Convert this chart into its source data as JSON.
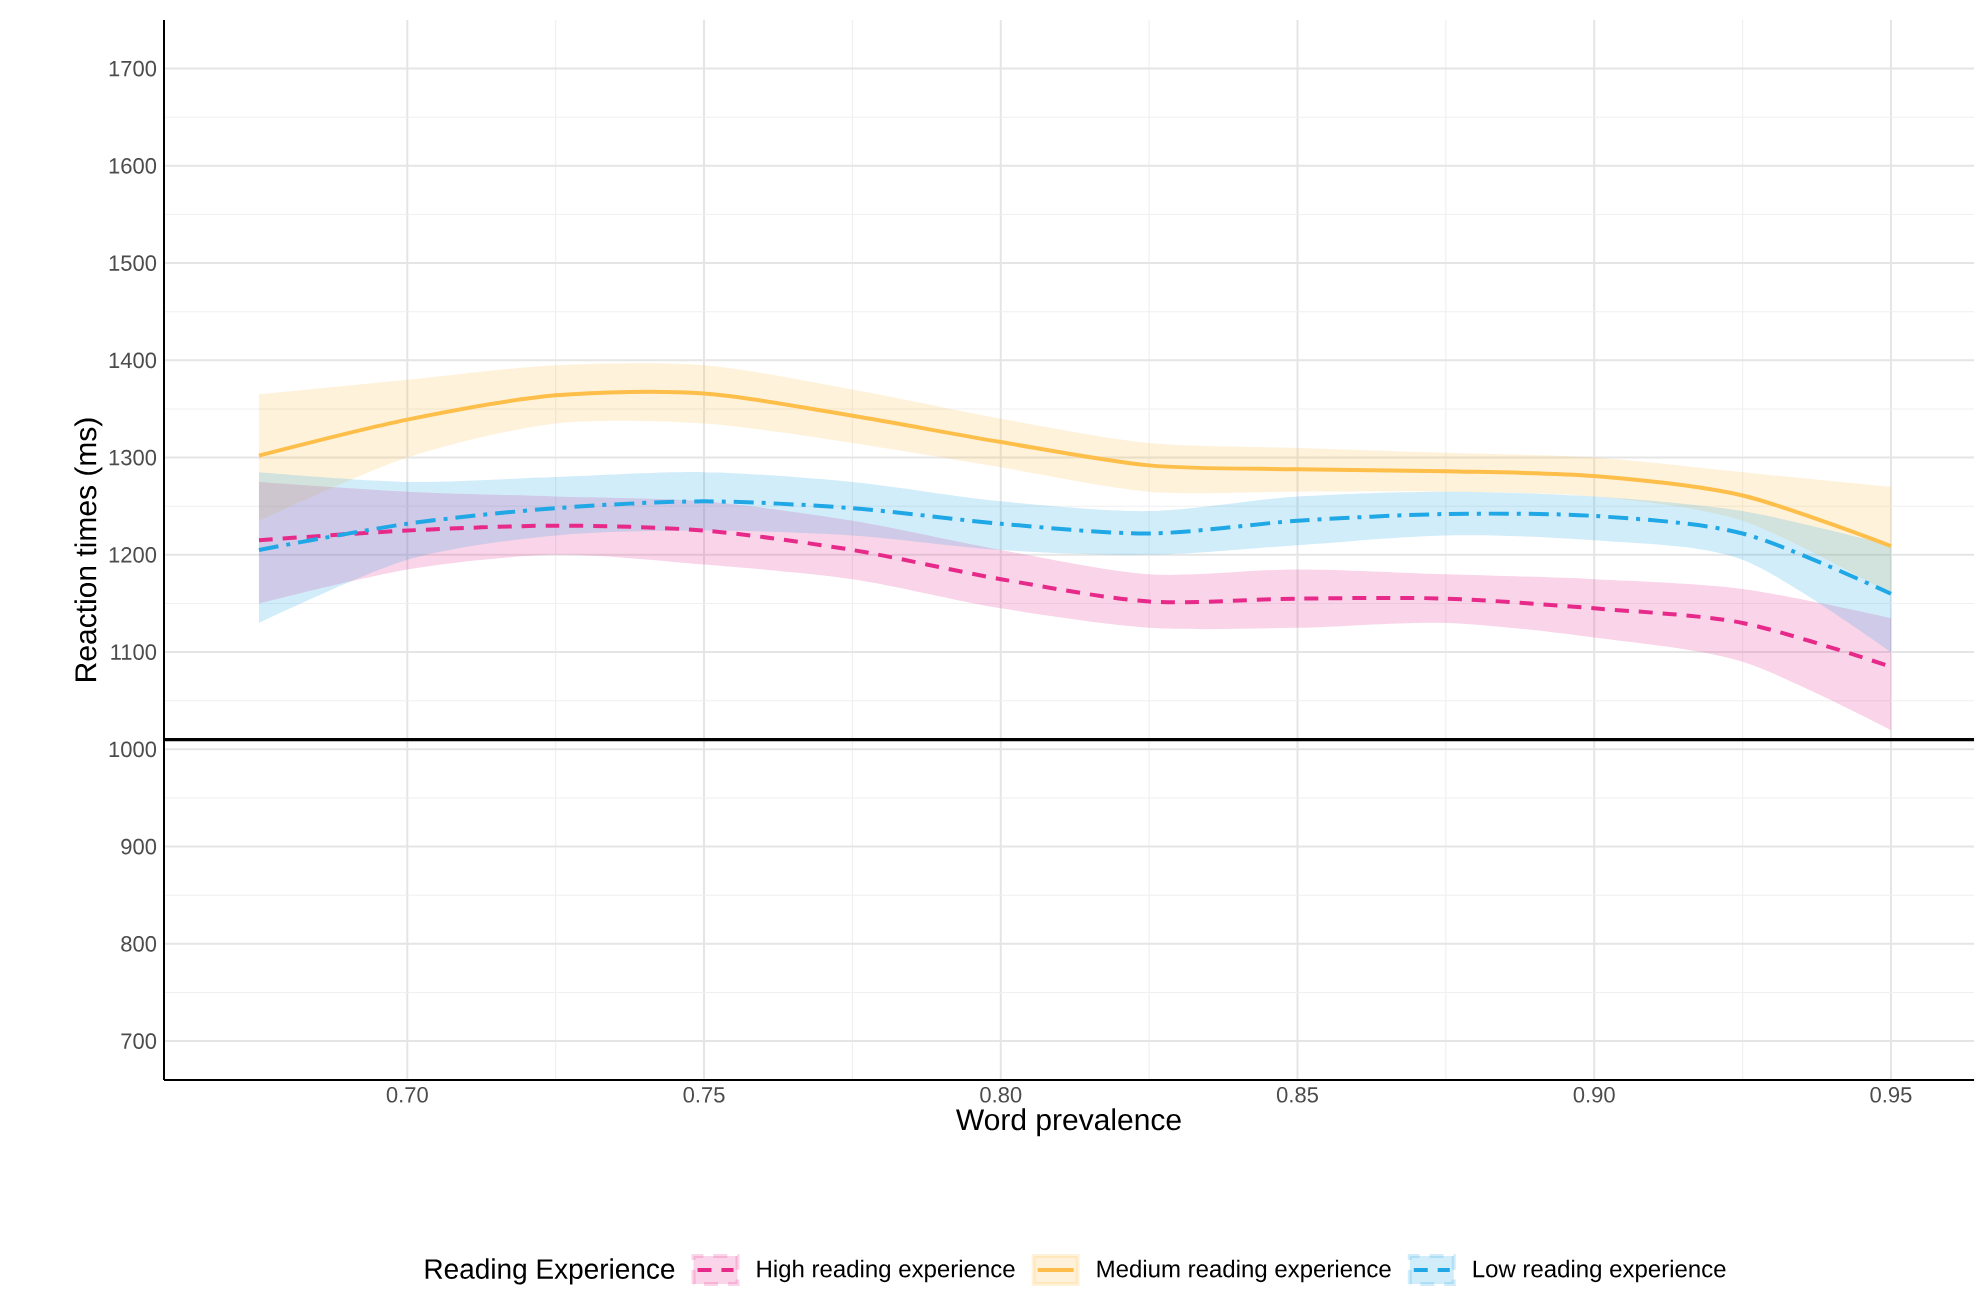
{
  "chart_data": {
    "type": "line",
    "xlabel": "Word prevalence",
    "ylabel": "Reaction times (ms)",
    "legend_title": "Reading Experience",
    "x": [
      0.675,
      0.7,
      0.725,
      0.75,
      0.775,
      0.8,
      0.825,
      0.85,
      0.875,
      0.9,
      0.925,
      0.95
    ],
    "series": [
      {
        "name": "High reading experience",
        "color": "#e7298a",
        "line_style": "dashed",
        "values": [
          1215,
          1225,
          1230,
          1225,
          1205,
          1175,
          1152,
          1155,
          1155,
          1145,
          1130,
          1085
        ],
        "lower": [
          1150,
          1185,
          1200,
          1190,
          1175,
          1145,
          1125,
          1125,
          1130,
          1115,
          1090,
          1020
        ],
        "upper": [
          1275,
          1265,
          1260,
          1255,
          1235,
          1205,
          1180,
          1185,
          1180,
          1175,
          1165,
          1135
        ]
      },
      {
        "name": "Medium reading experience",
        "color": "#fdbe4a",
        "line_style": "solid",
        "values": [
          1302,
          1339,
          1364,
          1366,
          1343,
          1316,
          1292,
          1288,
          1286,
          1281,
          1261,
          1209
        ],
        "lower": [
          1235,
          1300,
          1335,
          1335,
          1315,
          1290,
          1265,
          1265,
          1265,
          1260,
          1235,
          1160
        ],
        "upper": [
          1365,
          1380,
          1395,
          1395,
          1370,
          1340,
          1315,
          1310,
          1305,
          1300,
          1285,
          1270
        ]
      },
      {
        "name": "Low reading experience",
        "color": "#1fa7e6",
        "line_style": "dashdot",
        "values": [
          1205,
          1232,
          1248,
          1255,
          1248,
          1232,
          1222,
          1235,
          1242,
          1240,
          1222,
          1160
        ],
        "lower": [
          1130,
          1195,
          1220,
          1225,
          1220,
          1205,
          1200,
          1210,
          1220,
          1215,
          1195,
          1100
        ],
        "upper": [
          1285,
          1275,
          1280,
          1285,
          1275,
          1255,
          1245,
          1260,
          1265,
          1260,
          1245,
          1210
        ]
      }
    ],
    "xlim": [
      0.659,
      0.964
    ],
    "ylim": [
      660,
      1750
    ],
    "xticks": [
      {
        "value": 0.7,
        "label": "0.70"
      },
      {
        "value": 0.75,
        "label": "0.75"
      },
      {
        "value": 0.8,
        "label": "0.80"
      },
      {
        "value": 0.85,
        "label": "0.85"
      },
      {
        "value": 0.9,
        "label": "0.90"
      },
      {
        "value": 0.95,
        "label": "0.95"
      }
    ],
    "yticks": [
      700,
      800,
      900,
      1000,
      1100,
      1200,
      1300,
      1400,
      1500,
      1600,
      1700
    ],
    "ref_lines": [
      {
        "axis": "y",
        "value": 1010,
        "color": "#000000"
      }
    ],
    "grid": true,
    "legend": "bottom"
  }
}
